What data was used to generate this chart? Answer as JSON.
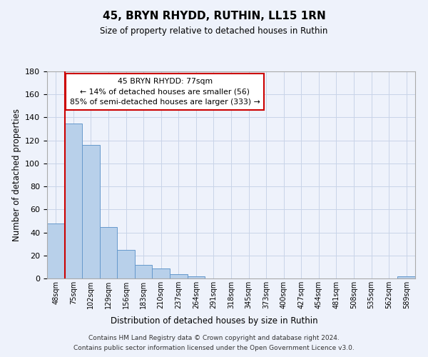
{
  "title": "45, BRYN RHYDD, RUTHIN, LL15 1RN",
  "subtitle": "Size of property relative to detached houses in Ruthin",
  "xlabel": "Distribution of detached houses by size in Ruthin",
  "ylabel": "Number of detached properties",
  "bin_labels": [
    "48sqm",
    "75sqm",
    "102sqm",
    "129sqm",
    "156sqm",
    "183sqm",
    "210sqm",
    "237sqm",
    "264sqm",
    "291sqm",
    "318sqm",
    "345sqm",
    "373sqm",
    "400sqm",
    "427sqm",
    "454sqm",
    "481sqm",
    "508sqm",
    "535sqm",
    "562sqm",
    "589sqm"
  ],
  "bar_values": [
    48,
    135,
    116,
    45,
    25,
    12,
    9,
    4,
    2,
    0,
    0,
    0,
    0,
    0,
    0,
    0,
    0,
    0,
    0,
    0,
    2
  ],
  "bar_color": "#b8d0ea",
  "bar_edge_color": "#6699cc",
  "ylim": [
    0,
    180
  ],
  "yticks": [
    0,
    20,
    40,
    60,
    80,
    100,
    120,
    140,
    160,
    180
  ],
  "marker_line_color": "#cc0000",
  "annotation_text": "45 BRYN RHYDD: 77sqm\n← 14% of detached houses are smaller (56)\n85% of semi-detached houses are larger (333) →",
  "annotation_box_color": "#ffffff",
  "annotation_box_edge": "#cc0000",
  "footer_line1": "Contains HM Land Registry data © Crown copyright and database right 2024.",
  "footer_line2": "Contains public sector information licensed under the Open Government Licence v3.0.",
  "background_color": "#eef2fb",
  "grid_color": "#c8d4e8"
}
